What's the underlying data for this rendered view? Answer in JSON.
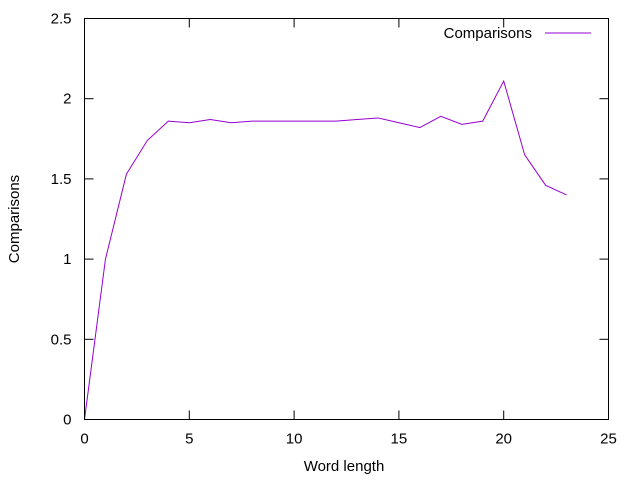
{
  "chart_data": {
    "type": "line",
    "title": "",
    "xlabel": "Word length",
    "ylabel": "Comparisons",
    "xlim": [
      0,
      25
    ],
    "ylim": [
      0,
      2.5
    ],
    "x_ticks": [
      "0",
      "5",
      "10",
      "15",
      "20",
      "25"
    ],
    "y_ticks": [
      "0",
      "0.5",
      "1",
      "1.5",
      "2",
      "2.5"
    ],
    "grid": false,
    "legend": "top-right",
    "series": [
      {
        "name": "Comparisons",
        "color": "#9400d3",
        "x": [
          0,
          1,
          2,
          3,
          4,
          5,
          6,
          7,
          8,
          9,
          10,
          11,
          12,
          13,
          14,
          15,
          16,
          17,
          18,
          19,
          20,
          21,
          22,
          23
        ],
        "y": [
          0,
          1.0,
          1.53,
          1.74,
          1.86,
          1.85,
          1.87,
          1.85,
          1.86,
          1.86,
          1.86,
          1.86,
          1.86,
          1.87,
          1.88,
          1.85,
          1.82,
          1.89,
          1.84,
          1.86,
          2.11,
          1.65,
          1.46,
          1.4
        ]
      }
    ]
  }
}
